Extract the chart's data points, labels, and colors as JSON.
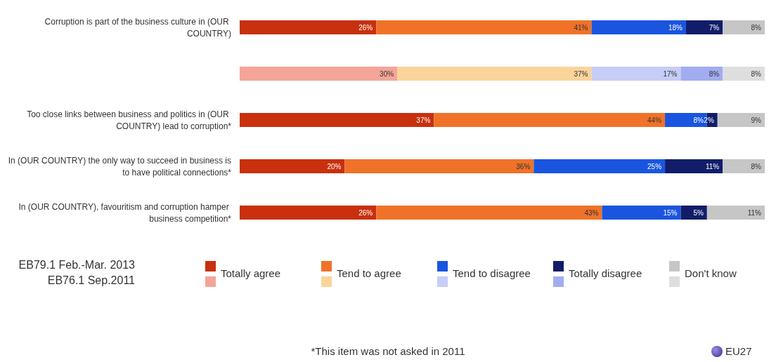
{
  "chart_data": {
    "type": "bar",
    "orientation": "horizontal",
    "stacked": true,
    "legend": "bottom",
    "categories": [
      "Corruption is part of the business culture in (OUR COUNTRY)",
      null,
      "Too close links between business and politics in (OUR COUNTRY) lead to corruption*",
      "In (OUR COUNTRY) the only way to succeed in business is to have political connections*",
      "In (OUR COUNTRY), favouritism and corruption hamper business competition*"
    ],
    "series": [
      {
        "name": "Totally agree",
        "color": "#c8300e",
        "values": [
          26,
          null,
          37,
          20,
          26
        ],
        "value_labels": [
          "26%",
          null,
          "37%",
          "20%",
          "26%"
        ]
      },
      {
        "name": "Tend to agree",
        "color": "#f07228",
        "values": [
          41,
          null,
          44,
          36,
          43
        ],
        "value_labels": [
          "41%",
          null,
          "44%",
          "36%",
          "43%"
        ]
      },
      {
        "name": "Tend to disagree",
        "color": "#1a55e0",
        "values": [
          18,
          null,
          8,
          25,
          15
        ],
        "value_labels": [
          "18%",
          null,
          "8%",
          "25%",
          "15%"
        ]
      },
      {
        "name": "Totally disagree",
        "color": "#121d6a",
        "values": [
          7,
          null,
          2,
          11,
          5
        ],
        "value_labels": [
          "7%",
          null,
          "2%",
          "11%",
          "5%"
        ]
      },
      {
        "name": "Don't know",
        "color": "#c6c6c6",
        "values": [
          8,
          null,
          9,
          8,
          11
        ],
        "value_labels": [
          "8%",
          null,
          "9%",
          "8%",
          "11%"
        ]
      },
      {
        "color": "#f4a598",
        "values": [
          null,
          30,
          null,
          null,
          null
        ],
        "value_labels": [
          null,
          "30%",
          null,
          null,
          null
        ]
      },
      {
        "color": "#fbd49a",
        "values": [
          null,
          37,
          null,
          null,
          null
        ],
        "value_labels": [
          null,
          "37%",
          null,
          null,
          null
        ]
      },
      {
        "color": "#c6cdf6",
        "values": [
          null,
          17,
          null,
          null,
          null
        ],
        "value_labels": [
          null,
          "17%",
          null,
          null,
          null
        ]
      },
      {
        "color": "#a2acf0",
        "values": [
          null,
          8,
          null,
          null,
          null
        ],
        "value_labels": [
          null,
          "8%",
          null,
          null,
          null
        ]
      },
      {
        "color": "#dedede",
        "values": [
          null,
          8,
          null,
          null,
          null
        ],
        "value_labels": [
          null,
          "8%",
          null,
          null,
          null
        ]
      }
    ],
    "annotations": [
      "EB79.1 Feb.-Mar. 2013",
      "EB76.1 Sep.2011",
      "*This item was not asked in 2011",
      "EU27"
    ]
  }
}
